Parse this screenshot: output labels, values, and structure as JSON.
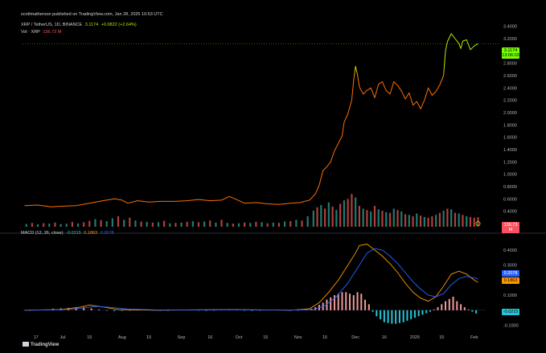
{
  "header": "scottmatherson published on TradingView.com, Jan 28, 2025 10:53 UTC",
  "logo_text": "TradingView",
  "legend": {
    "symbol": "XRP / TetherUS, 1D, BINANCE",
    "last": "3.1174",
    "change": "+0.0822 (+2.64%)",
    "vol_label": "Vol · XRP",
    "vol_value": "136.73 M",
    "macd_label": "MACD (12, 26, close)",
    "macd_hist": "-0.0215",
    "macd_line": "0.1863",
    "signal_line": "0.2078"
  },
  "badges": {
    "price": "3.1174",
    "price_countdown": "13:06:03",
    "volume": "136.73 M",
    "signal": "0.2078",
    "macd": "0.1863",
    "hist": "-0.0215"
  },
  "colors": {
    "up": "#26a69a",
    "down": "#ef5350",
    "price_low": "#ff6d00",
    "price_high": "#aeea00",
    "macd": "#ff9800",
    "signal": "#2962ff",
    "hist_up": "#ef9a9a",
    "hist_down": "#26c6da",
    "grid": "#1e222d"
  },
  "chart_data": [
    {
      "type": "line",
      "title": "XRP / TetherUS, 1D, BINANCE",
      "y_axis_labels": [
        "3.4000",
        "3.2000",
        "2.8000",
        "2.6000",
        "2.4000",
        "2.2000",
        "2.0000",
        "1.8000",
        "1.6000",
        "1.4000",
        "1.2000",
        "1.0000",
        "0.8000",
        "0.6000",
        "0.4000"
      ],
      "ylim": [
        0.2,
        3.5
      ],
      "x_tick_labels": [
        "17",
        "Jul",
        "15",
        "Aug",
        "15",
        "Sep",
        "16",
        "Oct",
        "15",
        "Nov",
        "15",
        "Dec",
        "16",
        "2025",
        "15",
        "Feb"
      ],
      "x_tick_days": [
        17,
        31,
        45,
        62,
        76,
        93,
        108,
        123,
        137,
        154,
        168,
        184,
        199,
        215,
        229,
        246
      ],
      "x_range_days": [
        10,
        252
      ],
      "series": [
        {
          "points": [
            [
              11,
              0.49
            ],
            [
              18,
              0.5
            ],
            [
              25,
              0.47
            ],
            [
              30,
              0.48
            ],
            [
              38,
              0.49
            ],
            [
              45,
              0.53
            ],
            [
              52,
              0.57
            ],
            [
              58,
              0.6
            ],
            [
              62,
              0.58
            ],
            [
              65,
              0.53
            ],
            [
              70,
              0.57
            ],
            [
              76,
              0.55
            ],
            [
              82,
              0.56
            ],
            [
              90,
              0.56
            ],
            [
              96,
              0.57
            ],
            [
              102,
              0.59
            ],
            [
              108,
              0.57
            ],
            [
              114,
              0.58
            ],
            [
              118,
              0.64
            ],
            [
              121,
              0.6
            ],
            [
              126,
              0.53
            ],
            [
              132,
              0.54
            ],
            [
              138,
              0.52
            ],
            [
              144,
              0.51
            ],
            [
              150,
              0.53
            ],
            [
              155,
              0.54
            ],
            [
              160,
              0.58
            ],
            [
              163,
              0.68
            ],
            [
              165,
              0.82
            ],
            [
              167,
              1.06
            ],
            [
              169,
              1.12
            ],
            [
              171,
              1.2
            ],
            [
              173,
              1.38
            ],
            [
              175,
              1.5
            ],
            [
              177,
              1.62
            ],
            [
              178,
              1.84
            ],
            [
              180,
              1.98
            ],
            [
              182,
              2.2
            ],
            [
              183,
              2.52
            ],
            [
              184,
              2.75
            ],
            [
              185,
              2.62
            ],
            [
              186,
              2.42
            ],
            [
              188,
              2.3
            ],
            [
              190,
              2.36
            ],
            [
              192,
              2.4
            ],
            [
              194,
              2.24
            ],
            [
              196,
              2.46
            ],
            [
              198,
              2.5
            ],
            [
              200,
              2.36
            ],
            [
              202,
              2.3
            ],
            [
              204,
              2.5
            ],
            [
              206,
              2.44
            ],
            [
              208,
              2.35
            ],
            [
              210,
              2.22
            ],
            [
              212,
              2.32
            ],
            [
              214,
              2.12
            ],
            [
              216,
              2.18
            ],
            [
              218,
              2.06
            ],
            [
              220,
              2.2
            ],
            [
              222,
              2.4
            ],
            [
              224,
              2.28
            ],
            [
              226,
              2.34
            ],
            [
              228,
              2.45
            ],
            [
              230,
              2.6
            ],
            [
              231,
              3.0
            ],
            [
              232,
              3.15
            ],
            [
              234,
              3.28
            ],
            [
              236,
              3.2
            ],
            [
              238,
              3.12
            ],
            [
              239,
              3.04
            ],
            [
              240,
              3.16
            ],
            [
              242,
              3.18
            ],
            [
              244,
              3.02
            ],
            [
              246,
              3.08
            ],
            [
              248,
              3.1174
            ]
          ]
        }
      ]
    },
    {
      "type": "bar",
      "title": "Vol · XRP",
      "x": [
        12,
        15,
        18,
        21,
        24,
        27,
        30,
        33,
        36,
        39,
        42,
        45,
        48,
        51,
        54,
        57,
        60,
        63,
        66,
        69,
        72,
        75,
        78,
        81,
        84,
        87,
        90,
        93,
        96,
        99,
        102,
        105,
        108,
        111,
        114,
        117,
        120,
        123,
        126,
        129,
        132,
        135,
        138,
        141,
        144,
        147,
        150,
        153,
        156,
        159,
        162,
        164,
        166,
        168,
        170,
        172,
        174,
        176,
        178,
        180,
        182,
        184,
        186,
        188,
        190,
        192,
        194,
        196,
        198,
        200,
        202,
        204,
        206,
        208,
        210,
        212,
        214,
        216,
        218,
        220,
        222,
        224,
        226,
        228,
        230,
        232,
        234,
        236,
        238,
        240,
        242,
        244,
        246,
        248
      ],
      "values": [
        40,
        55,
        35,
        50,
        45,
        60,
        38,
        42,
        70,
        48,
        65,
        85,
        110,
        95,
        80,
        120,
        150,
        100,
        130,
        90,
        75,
        70,
        60,
        65,
        85,
        50,
        55,
        60,
        70,
        80,
        65,
        75,
        90,
        60,
        100,
        55,
        45,
        50,
        60,
        55,
        70,
        65,
        50,
        60,
        55,
        75,
        80,
        100,
        90,
        150,
        230,
        280,
        310,
        260,
        350,
        290,
        240,
        330,
        380,
        400,
        470,
        420,
        300,
        260,
        240,
        220,
        300,
        250,
        230,
        210,
        200,
        260,
        240,
        220,
        180,
        170,
        150,
        190,
        160,
        140,
        130,
        150,
        170,
        200,
        230,
        260,
        250,
        200,
        190,
        170,
        150,
        140,
        130,
        136.73
      ],
      "direction": [
        "up",
        "down",
        "up",
        "down",
        "up",
        "down",
        "up",
        "up",
        "down",
        "up",
        "down",
        "down",
        "up",
        "down",
        "up",
        "up",
        "down",
        "up",
        "down",
        "up",
        "down",
        "up",
        "down",
        "up",
        "down",
        "up",
        "down",
        "up",
        "down",
        "up",
        "down",
        "up",
        "down",
        "up",
        "down",
        "up",
        "down",
        "up",
        "down",
        "up",
        "down",
        "up",
        "down",
        "up",
        "down",
        "up",
        "down",
        "up",
        "down",
        "up",
        "up",
        "down",
        "up",
        "down",
        "up",
        "down",
        "up",
        "down",
        "up",
        "down",
        "down",
        "up",
        "down",
        "up",
        "down",
        "up",
        "down",
        "up",
        "down",
        "up",
        "down",
        "up",
        "down",
        "up",
        "down",
        "up",
        "down",
        "up",
        "down",
        "up",
        "down",
        "down",
        "up",
        "down",
        "up",
        "down",
        "up",
        "down",
        "up",
        "down",
        "up",
        "down",
        "down",
        "down"
      ],
      "ylim": [
        0,
        600
      ]
    },
    {
      "type": "line",
      "title": "MACD (12, 26, close)",
      "y_axis_labels": [
        "0.4000",
        "0.3000",
        "0.2000",
        "0.1000",
        "-0.1000"
      ],
      "ylim": [
        -0.14,
        0.48
      ],
      "series": [
        {
          "name": "MACD",
          "points": [
            [
              11,
              0.0
            ],
            [
              30,
              0.005
            ],
            [
              40,
              0.02
            ],
            [
              45,
              0.035
            ],
            [
              50,
              0.025
            ],
            [
              60,
              0.005
            ],
            [
              80,
              0.0
            ],
            [
              120,
              0.005
            ],
            [
              150,
              0.0
            ],
            [
              160,
              0.01
            ],
            [
              165,
              0.05
            ],
            [
              170,
              0.12
            ],
            [
              175,
              0.2
            ],
            [
              180,
              0.3
            ],
            [
              184,
              0.38
            ],
            [
              186,
              0.43
            ],
            [
              190,
              0.44
            ],
            [
              194,
              0.4
            ],
            [
              198,
              0.36
            ],
            [
              202,
              0.31
            ],
            [
              206,
              0.25
            ],
            [
              210,
              0.18
            ],
            [
              214,
              0.12
            ],
            [
              218,
              0.08
            ],
            [
              222,
              0.06
            ],
            [
              226,
              0.09
            ],
            [
              230,
              0.16
            ],
            [
              234,
              0.24
            ],
            [
              238,
              0.26
            ],
            [
              242,
              0.24
            ],
            [
              246,
              0.2
            ],
            [
              248,
              0.1863
            ]
          ]
        },
        {
          "name": "Signal",
          "points": [
            [
              11,
              0.0
            ],
            [
              30,
              0.003
            ],
            [
              40,
              0.012
            ],
            [
              48,
              0.025
            ],
            [
              55,
              0.02
            ],
            [
              65,
              0.008
            ],
            [
              80,
              0.002
            ],
            [
              120,
              0.003
            ],
            [
              150,
              0.001
            ],
            [
              162,
              0.005
            ],
            [
              168,
              0.03
            ],
            [
              174,
              0.09
            ],
            [
              180,
              0.18
            ],
            [
              186,
              0.3
            ],
            [
              190,
              0.38
            ],
            [
              194,
              0.41
            ],
            [
              198,
              0.4
            ],
            [
              202,
              0.36
            ],
            [
              206,
              0.31
            ],
            [
              210,
              0.25
            ],
            [
              214,
              0.19
            ],
            [
              218,
              0.14
            ],
            [
              222,
              0.1
            ],
            [
              226,
              0.09
            ],
            [
              230,
              0.11
            ],
            [
              234,
              0.17
            ],
            [
              238,
              0.21
            ],
            [
              242,
              0.225
            ],
            [
              246,
              0.215
            ],
            [
              248,
              0.2078
            ]
          ]
        }
      ],
      "histogram": {
        "x": [
          14,
          18,
          22,
          26,
          30,
          34,
          38,
          42,
          46,
          50,
          54,
          58,
          62,
          66,
          70,
          74,
          78,
          82,
          86,
          90,
          94,
          98,
          102,
          106,
          110,
          114,
          118,
          122,
          126,
          130,
          134,
          138,
          142,
          146,
          150,
          154,
          158,
          161,
          163,
          165,
          167,
          169,
          171,
          173,
          175,
          177,
          179,
          181,
          183,
          185,
          187,
          189,
          191,
          193,
          195,
          197,
          199,
          201,
          203,
          205,
          207,
          209,
          211,
          213,
          215,
          217,
          219,
          221,
          223,
          225,
          227,
          229,
          231,
          233,
          235,
          237,
          239,
          241,
          243,
          245,
          247
        ],
        "values": [
          0.0,
          0.002,
          0.005,
          0.01,
          0.012,
          0.015,
          0.018,
          0.02,
          0.012,
          0.005,
          -0.004,
          -0.006,
          -0.004,
          -0.002,
          0.002,
          0.004,
          0.002,
          -0.002,
          -0.003,
          0.002,
          0.004,
          0.003,
          -0.002,
          -0.004,
          -0.002,
          0.003,
          0.005,
          0.003,
          -0.003,
          -0.004,
          -0.002,
          0.002,
          0.003,
          0.002,
          -0.002,
          -0.003,
          0.004,
          0.01,
          0.02,
          0.035,
          0.05,
          0.07,
          0.085,
          0.1,
          0.11,
          0.12,
          0.12,
          0.11,
          0.1,
          0.12,
          0.11,
          0.07,
          0.04,
          -0.01,
          -0.04,
          -0.06,
          -0.08,
          -0.085,
          -0.09,
          -0.09,
          -0.085,
          -0.08,
          -0.07,
          -0.06,
          -0.05,
          -0.04,
          -0.03,
          -0.02,
          -0.01,
          0.005,
          0.02,
          0.04,
          0.06,
          0.075,
          0.09,
          0.06,
          0.04,
          0.02,
          0.005,
          -0.01,
          -0.0215
        ]
      }
    }
  ]
}
